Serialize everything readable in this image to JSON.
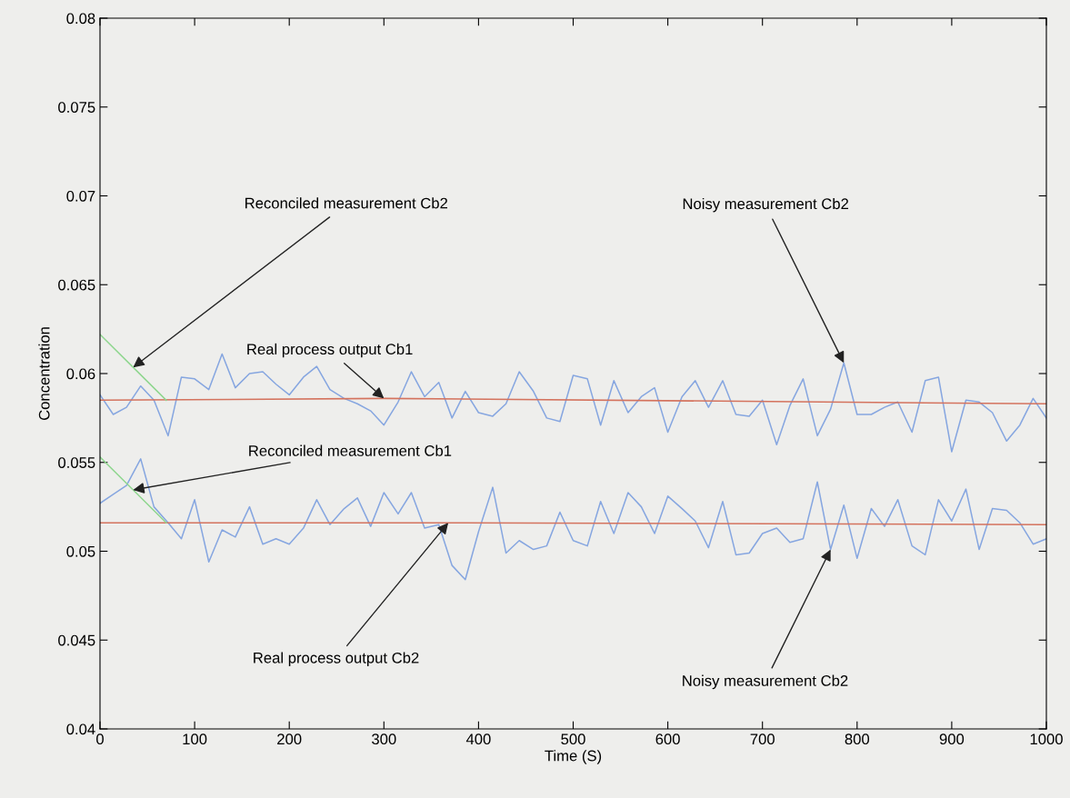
{
  "chart_data": {
    "type": "line",
    "xlabel": "Time (S)",
    "ylabel": "Concentration",
    "xlim": [
      0,
      1000
    ],
    "xticks": [
      0,
      100,
      200,
      300,
      400,
      500,
      600,
      700,
      800,
      900,
      1000
    ],
    "ylim": [
      0.04,
      0.08
    ],
    "yticks": [
      0.04,
      0.045,
      0.05,
      0.055,
      0.06,
      0.065,
      0.07,
      0.075,
      0.08
    ],
    "grid": false,
    "legend": false,
    "marker": "none",
    "line_style": "solid",
    "series": [
      {
        "color": "#86a6e0",
        "x": [
          0,
          14,
          28,
          43,
          57,
          72,
          86,
          100,
          115,
          129,
          143,
          158,
          172,
          186,
          200,
          215,
          229,
          243,
          258,
          272,
          286,
          300,
          315,
          329,
          343,
          358,
          372,
          386,
          400,
          415,
          429,
          443,
          458,
          472,
          486,
          500,
          515,
          529,
          543,
          558,
          572,
          586,
          600,
          615,
          629,
          643,
          658,
          672,
          686,
          700,
          715,
          729,
          743,
          758,
          772,
          786,
          800,
          815,
          829,
          843,
          858,
          872,
          886,
          900,
          915,
          929,
          943,
          958,
          972,
          986,
          1000
        ],
        "values": [
          0.0588,
          0.0577,
          0.0581,
          0.0593,
          0.0585,
          0.0565,
          0.0598,
          0.0597,
          0.0591,
          0.0611,
          0.0592,
          0.06,
          0.0601,
          0.0594,
          0.0588,
          0.0598,
          0.0604,
          0.0591,
          0.0586,
          0.0583,
          0.0579,
          0.0571,
          0.0584,
          0.0601,
          0.0587,
          0.0595,
          0.0575,
          0.059,
          0.0578,
          0.0576,
          0.0583,
          0.0601,
          0.059,
          0.0575,
          0.0573,
          0.0599,
          0.0597,
          0.0571,
          0.0596,
          0.0578,
          0.0587,
          0.0592,
          0.0567,
          0.0587,
          0.0596,
          0.0581,
          0.0596,
          0.0577,
          0.0576,
          0.0585,
          0.056,
          0.0582,
          0.0597,
          0.0565,
          0.058,
          0.0606,
          0.0577,
          0.0577,
          0.0581,
          0.0584,
          0.0567,
          0.0596,
          0.0598,
          0.0556,
          0.0585,
          0.0584,
          0.0578,
          0.0562,
          0.0571,
          0.0586,
          0.0575
        ]
      },
      {
        "color": "#86a6e0",
        "x": [
          0,
          14,
          28,
          43,
          57,
          72,
          86,
          100,
          115,
          129,
          143,
          158,
          172,
          186,
          200,
          215,
          229,
          243,
          258,
          272,
          286,
          300,
          315,
          329,
          343,
          358,
          372,
          386,
          400,
          415,
          429,
          443,
          458,
          472,
          486,
          500,
          515,
          529,
          543,
          558,
          572,
          586,
          600,
          615,
          629,
          643,
          658,
          672,
          686,
          700,
          715,
          729,
          743,
          758,
          772,
          786,
          800,
          815,
          829,
          843,
          858,
          872,
          886,
          900,
          915,
          929,
          943,
          958,
          972,
          986,
          1000
        ],
        "values": [
          0.0527,
          0.0532,
          0.0537,
          0.0552,
          0.0525,
          0.0516,
          0.0507,
          0.0529,
          0.0494,
          0.0512,
          0.0508,
          0.0525,
          0.0504,
          0.0507,
          0.0504,
          0.0513,
          0.0529,
          0.0515,
          0.0524,
          0.053,
          0.0514,
          0.0533,
          0.0521,
          0.0533,
          0.0513,
          0.0515,
          0.0492,
          0.0484,
          0.0511,
          0.0536,
          0.0499,
          0.0506,
          0.0501,
          0.0503,
          0.0522,
          0.0506,
          0.0503,
          0.0528,
          0.051,
          0.0533,
          0.0525,
          0.051,
          0.0531,
          0.0524,
          0.0517,
          0.0502,
          0.0528,
          0.0498,
          0.0499,
          0.051,
          0.0513,
          0.0505,
          0.0507,
          0.0539,
          0.0501,
          0.0526,
          0.0496,
          0.0524,
          0.0514,
          0.0529,
          0.0503,
          0.0498,
          0.0529,
          0.0517,
          0.0535,
          0.0501,
          0.0524,
          0.0523,
          0.0516,
          0.0504,
          0.0507
        ]
      },
      {
        "color": "#d4735e",
        "x": [
          0,
          300,
          1000
        ],
        "values": [
          0.0585,
          0.0586,
          0.0583
        ]
      },
      {
        "color": "#d4735e",
        "x": [
          0,
          368,
          1000
        ],
        "values": [
          0.0516,
          0.0516,
          0.0515
        ]
      },
      {
        "color": "#8fd68f",
        "x": [
          0,
          35,
          70
        ],
        "values": [
          0.0622,
          0.06035,
          0.0585
        ]
      },
      {
        "color": "#8fd68f",
        "x": [
          0,
          35,
          70
        ],
        "values": [
          0.0553,
          0.05345,
          0.0516
        ]
      }
    ],
    "annotations": [
      {
        "text": "Reconciled measurement Cb2",
        "x": 35,
        "y": 0.06035
      },
      {
        "text": "Real process output Cb1",
        "x": 300,
        "y": 0.0586
      },
      {
        "text": "Noisy measurement Cb2",
        "x": 786,
        "y": 0.0606
      },
      {
        "text": "Reconciled measurement Cb1",
        "x": 35,
        "y": 0.05345
      },
      {
        "text": "Real process output Cb2",
        "x": 368,
        "y": 0.0516
      },
      {
        "text": "Noisy measurement Cb2",
        "x": 772,
        "y": 0.0501
      }
    ]
  }
}
